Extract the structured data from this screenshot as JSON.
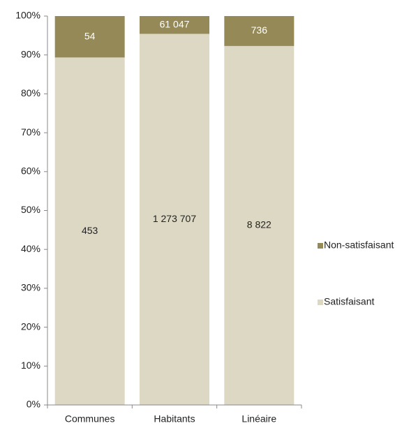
{
  "chart_data": {
    "type": "bar",
    "stacking": "percent",
    "categories": [
      "Communes",
      "Habitants",
      "Linéaire"
    ],
    "series": [
      {
        "name": "Satisfaisant",
        "color": "#ddd8c4",
        "label_color": "#222222",
        "values": [
          453,
          1273707,
          8822
        ],
        "value_labels": [
          "453",
          "1 273 707",
          "8 822"
        ]
      },
      {
        "name": "Non-satisfaisant",
        "color": "#958a57",
        "label_color": "#ffffff",
        "values": [
          54,
          61047,
          736
        ],
        "value_labels": [
          "54",
          "61 047",
          "736"
        ]
      }
    ],
    "ylim": [
      0,
      100
    ],
    "yticks": [
      {
        "value": 0,
        "label": "0%"
      },
      {
        "value": 10,
        "label": "10%"
      },
      {
        "value": 20,
        "label": "20%"
      },
      {
        "value": 30,
        "label": "30%"
      },
      {
        "value": 40,
        "label": "40%"
      },
      {
        "value": 50,
        "label": "50%"
      },
      {
        "value": 60,
        "label": "60%"
      },
      {
        "value": 70,
        "label": "70%"
      },
      {
        "value": 80,
        "label": "80%"
      },
      {
        "value": 90,
        "label": "90%"
      },
      {
        "value": 100,
        "label": "100%"
      }
    ],
    "legend": "right"
  }
}
